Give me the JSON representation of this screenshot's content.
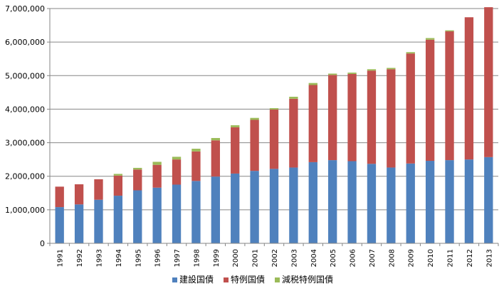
{
  "chart_data": {
    "type": "bar",
    "stacked": true,
    "categories": [
      "1991",
      "1992",
      "1993",
      "1994",
      "1995",
      "1996",
      "1997",
      "1998",
      "1999",
      "2000",
      "2001",
      "2002",
      "2003",
      "2004",
      "2005",
      "2006",
      "2007",
      "2008",
      "2009",
      "2010",
      "2011",
      "2012",
      "2013"
    ],
    "series": [
      {
        "name": "建設国債",
        "color": "#4F81BD",
        "values": [
          1080000,
          1160000,
          1300000,
          1420000,
          1580000,
          1660000,
          1750000,
          1860000,
          1990000,
          2080000,
          2160000,
          2220000,
          2260000,
          2420000,
          2480000,
          2450000,
          2370000,
          2260000,
          2380000,
          2460000,
          2480000,
          2500000,
          2570000
        ]
      },
      {
        "name": "特例国債",
        "color": "#C0504D",
        "values": [
          610000,
          600000,
          610000,
          600000,
          620000,
          680000,
          750000,
          880000,
          1080000,
          1380000,
          1520000,
          1770000,
          2050000,
          2300000,
          2540000,
          2600000,
          2780000,
          2930000,
          3280000,
          3610000,
          3840000,
          4240000,
          4470000
        ]
      },
      {
        "name": "減税特例国債",
        "color": "#9BBB59",
        "values": [
          0,
          0,
          0,
          50000,
          50000,
          90000,
          80000,
          80000,
          70000,
          60000,
          60000,
          40000,
          60000,
          60000,
          40000,
          40000,
          40000,
          40000,
          40000,
          50000,
          30000,
          0,
          0
        ]
      }
    ],
    "yticks": [
      "0",
      "1,000,000",
      "2,000,000",
      "3,000,000",
      "4,000,000",
      "5,000,000",
      "6,000,000",
      "7,000,000"
    ],
    "ylim": [
      0,
      7000000
    ],
    "grid": true,
    "legend_position": "bottom",
    "title": "",
    "xlabel": "",
    "ylabel": ""
  }
}
